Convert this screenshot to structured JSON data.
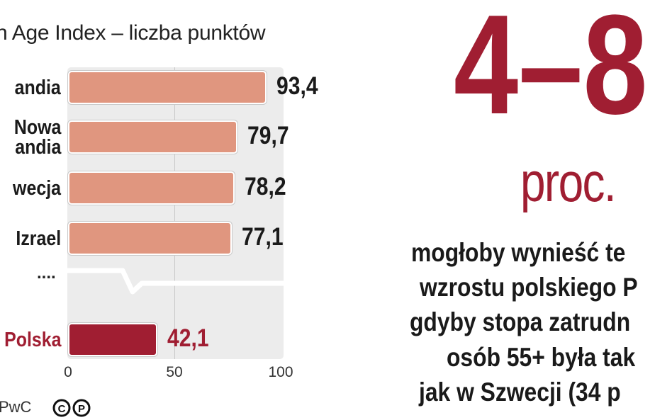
{
  "chart_data": {
    "type": "bar",
    "orientation": "horizontal",
    "title": "n Age Index – liczba punktów",
    "categories": [
      "andia",
      "Nowa\nandia",
      "wecja",
      "Izrael",
      "Polska"
    ],
    "values": [
      93.4,
      79.7,
      78.2,
      77.1,
      42.1
    ],
    "value_labels": [
      "93,4",
      "79,7",
      "78,2",
      "77,1",
      "42,1"
    ],
    "xlim": [
      0,
      100
    ],
    "xticks": [
      0,
      50,
      100
    ],
    "xtick_labels": [
      "0",
      "50",
      "100"
    ],
    "gridlines": [
      50
    ],
    "ellipsis": "....",
    "colors": {
      "bar": "#e0967f",
      "highlight": "#a01e32",
      "plot_bg": "#ececec",
      "text": "#1a1a1a"
    },
    "highlight_index": 4
  },
  "source": "PwC",
  "license_icon": "cc-icon",
  "headline": {
    "big_number": "4–8",
    "unit": "proc.",
    "lines": [
      "mogłoby wynieść te",
      "wzrostu polskiego P",
      "gdyby stopa zatrudn",
      "osób 55+ była tak",
      "jak w Szwecji (34 p"
    ]
  }
}
